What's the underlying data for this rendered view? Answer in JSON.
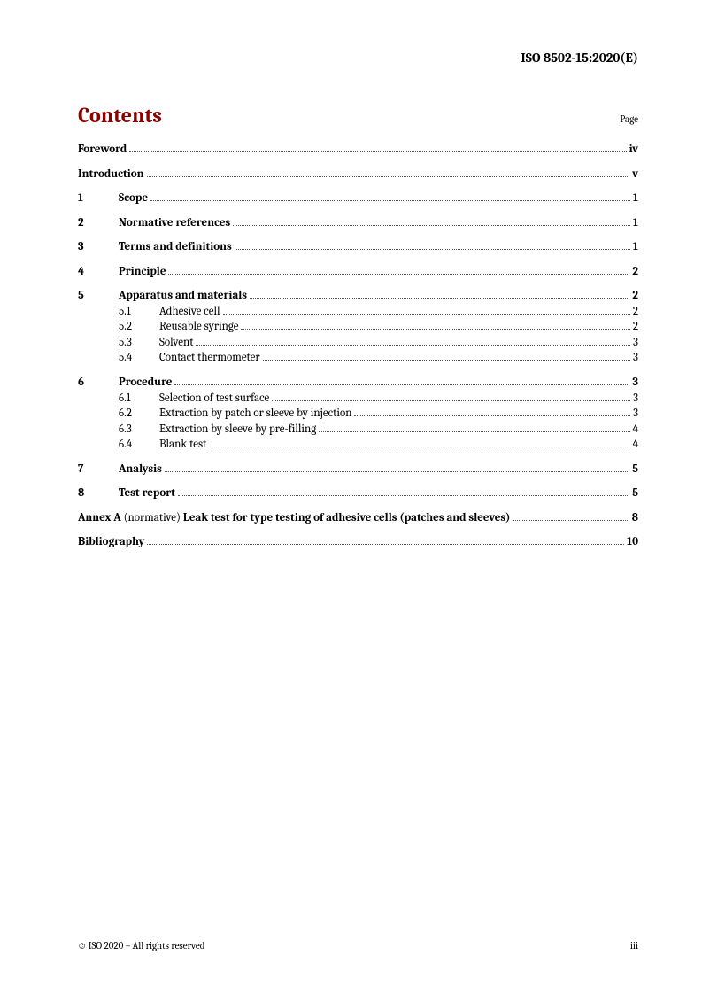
{
  "header_id": "ISO 8502-15:2020(E)",
  "contents_title": "Contents",
  "page_label": "Page",
  "toc": [
    {
      "num": "",
      "title": "Foreword",
      "page": "iv",
      "bold": true,
      "group": true
    },
    {
      "num": "",
      "title": "Introduction",
      "page": "v",
      "bold": true,
      "group": true
    },
    {
      "num": "1",
      "title": "Scope",
      "page": "1",
      "bold": true,
      "group": true
    },
    {
      "num": "2",
      "title": "Normative references",
      "page": "1",
      "bold": true,
      "group": true
    },
    {
      "num": "3",
      "title": "Terms and definitions",
      "page": "1",
      "bold": true,
      "group": true
    },
    {
      "num": "4",
      "title": "Principle",
      "page": "2",
      "bold": true,
      "group": true
    },
    {
      "num": "5",
      "title": "Apparatus and materials",
      "page": "2",
      "bold": true,
      "group": true,
      "subs": [
        {
          "num": "5.1",
          "title": "Adhesive cell",
          "page": "2"
        },
        {
          "num": "5.2",
          "title": "Reusable syringe",
          "page": "2"
        },
        {
          "num": "5.3",
          "title": "Solvent",
          "page": "3"
        },
        {
          "num": "5.4",
          "title": "Contact thermometer",
          "page": "3"
        }
      ]
    },
    {
      "num": "6",
      "title": "Procedure",
      "page": "3",
      "bold": true,
      "group": true,
      "subs": [
        {
          "num": "6.1",
          "title": "Selection of test surface",
          "page": "3"
        },
        {
          "num": "6.2",
          "title": "Extraction by patch or sleeve by injection",
          "page": "3"
        },
        {
          "num": "6.3",
          "title": "Extraction by sleeve by pre-filling",
          "page": "4"
        },
        {
          "num": "6.4",
          "title": "Blank test",
          "page": "4"
        }
      ]
    },
    {
      "num": "7",
      "title": "Analysis",
      "page": "5",
      "bold": true,
      "group": true
    },
    {
      "num": "8",
      "title": "Test report",
      "page": "5",
      "bold": true,
      "group": true
    },
    {
      "annex": true,
      "label": "Annex A",
      "note": "(normative)",
      "title": "Leak test for type testing of adhesive cells (patches and sleeves)",
      "page": "8",
      "group": true
    },
    {
      "num": "",
      "title": "Bibliography",
      "page": "10",
      "bold": true,
      "group": true
    }
  ],
  "footer_left": "© ISO 2020 – All rights reserved",
  "footer_right": "iii"
}
